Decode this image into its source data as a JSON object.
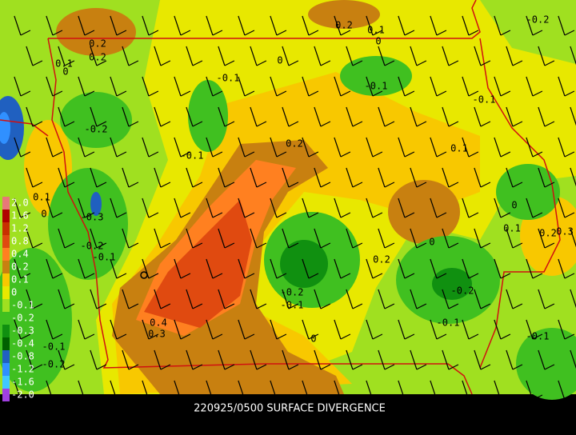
{
  "caption": "220925/0500 SURFACE DIVERGENCE",
  "legend": [
    {
      "label": "2.0",
      "color": "#e87878"
    },
    {
      "label": "1.6",
      "color": "#b00000"
    },
    {
      "label": "1.2",
      "color": "#c83000"
    },
    {
      "label": "0.8",
      "color": "#e04a10"
    },
    {
      "label": "0.4",
      "color": "#ff8020"
    },
    {
      "label": "0.2",
      "color": "#c88010"
    },
    {
      "label": "0.1",
      "color": "#f8c800"
    },
    {
      "label": "0",
      "color": "#e8e800"
    },
    {
      "label": "-0.1",
      "color": "#a0e020"
    },
    {
      "label": "-0.2",
      "color": "#40c020"
    },
    {
      "label": "-0.3",
      "color": "#109010"
    },
    {
      "label": "-0.4",
      "color": "#006000"
    },
    {
      "label": "-0.8",
      "color": "#2060c0"
    },
    {
      "label": "-1.2",
      "color": "#3090ff"
    },
    {
      "label": "-1.6",
      "color": "#40c8ff"
    },
    {
      "label": "-2.0",
      "color": "#a040e0"
    }
  ],
  "contour_labels": [
    "0.2",
    "0.2",
    "0.1",
    "0",
    "0.2",
    "0.1",
    "0",
    "0",
    "-0.1",
    "-0.1",
    "-0.1",
    "-0.2",
    "-0.1",
    "0.2",
    "0.1",
    "0.1",
    "0",
    "-0.3",
    "0",
    "0",
    "0.1",
    "0.2",
    "0.3",
    "-0.2",
    "-0.1",
    "0.2",
    "-0.2",
    "-0.1",
    "-0.2",
    "0.4",
    "0.3",
    "-0.1",
    "0",
    "-0.1",
    "-0.2",
    "-0.2",
    "-0.1"
  ]
}
